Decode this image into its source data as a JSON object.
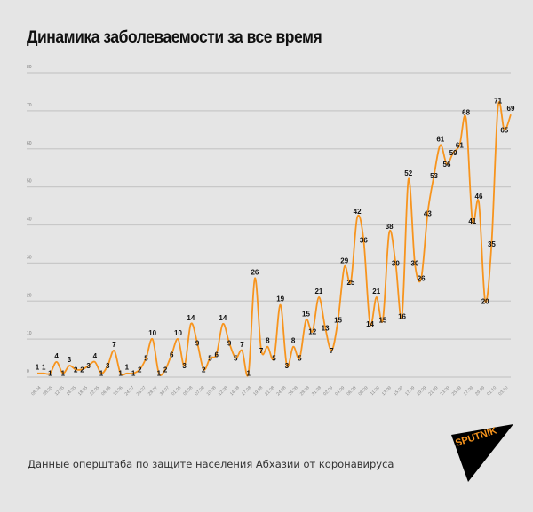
{
  "title": "Динамика заболеваемости за все время",
  "source": "Данные оперштаба по защите населения Абхазии от коронавируса",
  "logo": "SPUTNIK",
  "colors": {
    "line": "#f7941d",
    "grid": "#c8c8c8",
    "background": "#e5e5e5",
    "logo_bg": "#000000",
    "logo_text": "#f7941d"
  },
  "chart_data": {
    "type": "line",
    "title": "Динамика заболеваемости за все время",
    "ylim": [
      0,
      80
    ],
    "yticks": [
      0,
      10,
      20,
      30,
      40,
      50,
      60,
      70,
      80
    ],
    "grid": true,
    "xtick_labels": [
      "08.04",
      "08.05",
      "12.05",
      "14.05",
      "18.05",
      "22.05",
      "06.06",
      "15.06",
      "24.07",
      "26.07",
      "28.07",
      "30.07",
      "01.08",
      "05.08",
      "07.08",
      "10.08",
      "12.08",
      "14.08",
      "17.08",
      "19.08",
      "21.08",
      "24.08",
      "26.08",
      "28.08",
      "31.08",
      "02.09",
      "04.09",
      "06.09",
      "08.09",
      "11.09",
      "13.09",
      "15.09",
      "17.09",
      "19.09",
      "21.09",
      "23.09",
      "25.09",
      "27.09",
      "29.09",
      "01.10",
      "03.10"
    ],
    "values": [
      1,
      1,
      1,
      4,
      1,
      3,
      2,
      2,
      3,
      4,
      1,
      3,
      7,
      1,
      1,
      1,
      2,
      5,
      10,
      1,
      2,
      6,
      10,
      3,
      14,
      9,
      2,
      5,
      6,
      14,
      9,
      5,
      7,
      1,
      26,
      7,
      8,
      5,
      19,
      3,
      8,
      5,
      15,
      12,
      21,
      13,
      7,
      15,
      29,
      25,
      42,
      36,
      14,
      21,
      15,
      38,
      30,
      16,
      52,
      30,
      26,
      43,
      53,
      61,
      56,
      59,
      61,
      68,
      41,
      46,
      20,
      35,
      71,
      65,
      69
    ]
  }
}
